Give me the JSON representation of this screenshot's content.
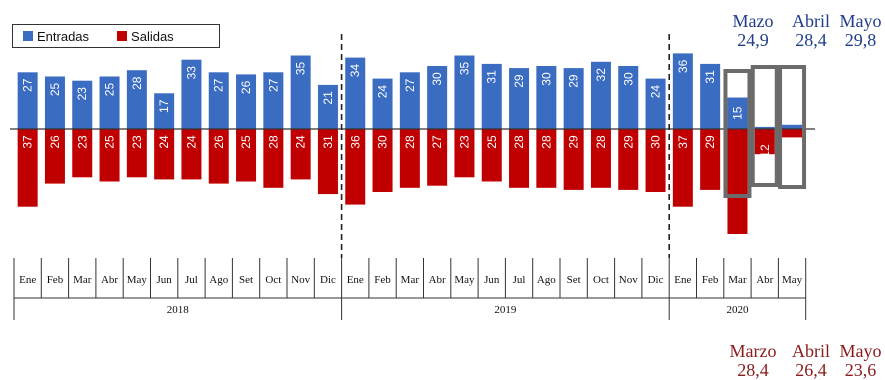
{
  "legend": {
    "entradas": "Entradas",
    "salidas": "Salidas"
  },
  "colors": {
    "entradas": "#3a6cc2",
    "salidas": "#c00000",
    "entradas_text": "#1f3d8c",
    "salidas_text": "#8b1a1a",
    "highlight_box": "#6b6b6b"
  },
  "chart_data": {
    "type": "bar",
    "categories": [
      "Ene",
      "Feb",
      "Mar",
      "Abr",
      "May",
      "Jun",
      "Jul",
      "Ago",
      "Set",
      "Oct",
      "Nov",
      "Dic",
      "Ene",
      "Feb",
      "Mar",
      "Abr",
      "May",
      "Jun",
      "Jul",
      "Ago",
      "Set",
      "Oct",
      "Nov",
      "Dic",
      "Ene",
      "Feb",
      "Mar",
      "Abr",
      "May"
    ],
    "years": [
      {
        "label": "2018",
        "start": 0,
        "end": 11
      },
      {
        "label": "2019",
        "start": 12,
        "end": 23
      },
      {
        "label": "2020",
        "start": 24,
        "end": 28
      }
    ],
    "series": [
      {
        "name": "Entradas",
        "values": [
          27,
          25,
          23,
          25,
          28,
          17,
          33,
          27,
          26,
          27,
          35,
          21,
          34,
          24,
          27,
          30,
          35,
          31,
          29,
          30,
          29,
          32,
          30,
          24,
          36,
          31,
          15,
          1,
          2
        ]
      },
      {
        "name": "Salidas",
        "values": [
          37,
          26,
          23,
          25,
          23,
          24,
          24,
          26,
          25,
          28,
          24,
          31,
          36,
          30,
          28,
          27,
          23,
          25,
          28,
          28,
          29,
          28,
          29,
          30,
          37,
          29,
          50,
          12,
          4
        ]
      }
    ],
    "highlighted": [
      "Mar",
      "Abr",
      "May"
    ]
  },
  "summary_entradas": [
    {
      "month": "Mazo",
      "value": "24,9"
    },
    {
      "month": "Abril",
      "value": "28,4"
    },
    {
      "month": "Mayo",
      "value": "29,8"
    }
  ],
  "summary_salidas": [
    {
      "month": "Marzo",
      "value": "28,4"
    },
    {
      "month": "Abril",
      "value": "26,4"
    },
    {
      "month": "Mayo",
      "value": "23,6"
    }
  ]
}
